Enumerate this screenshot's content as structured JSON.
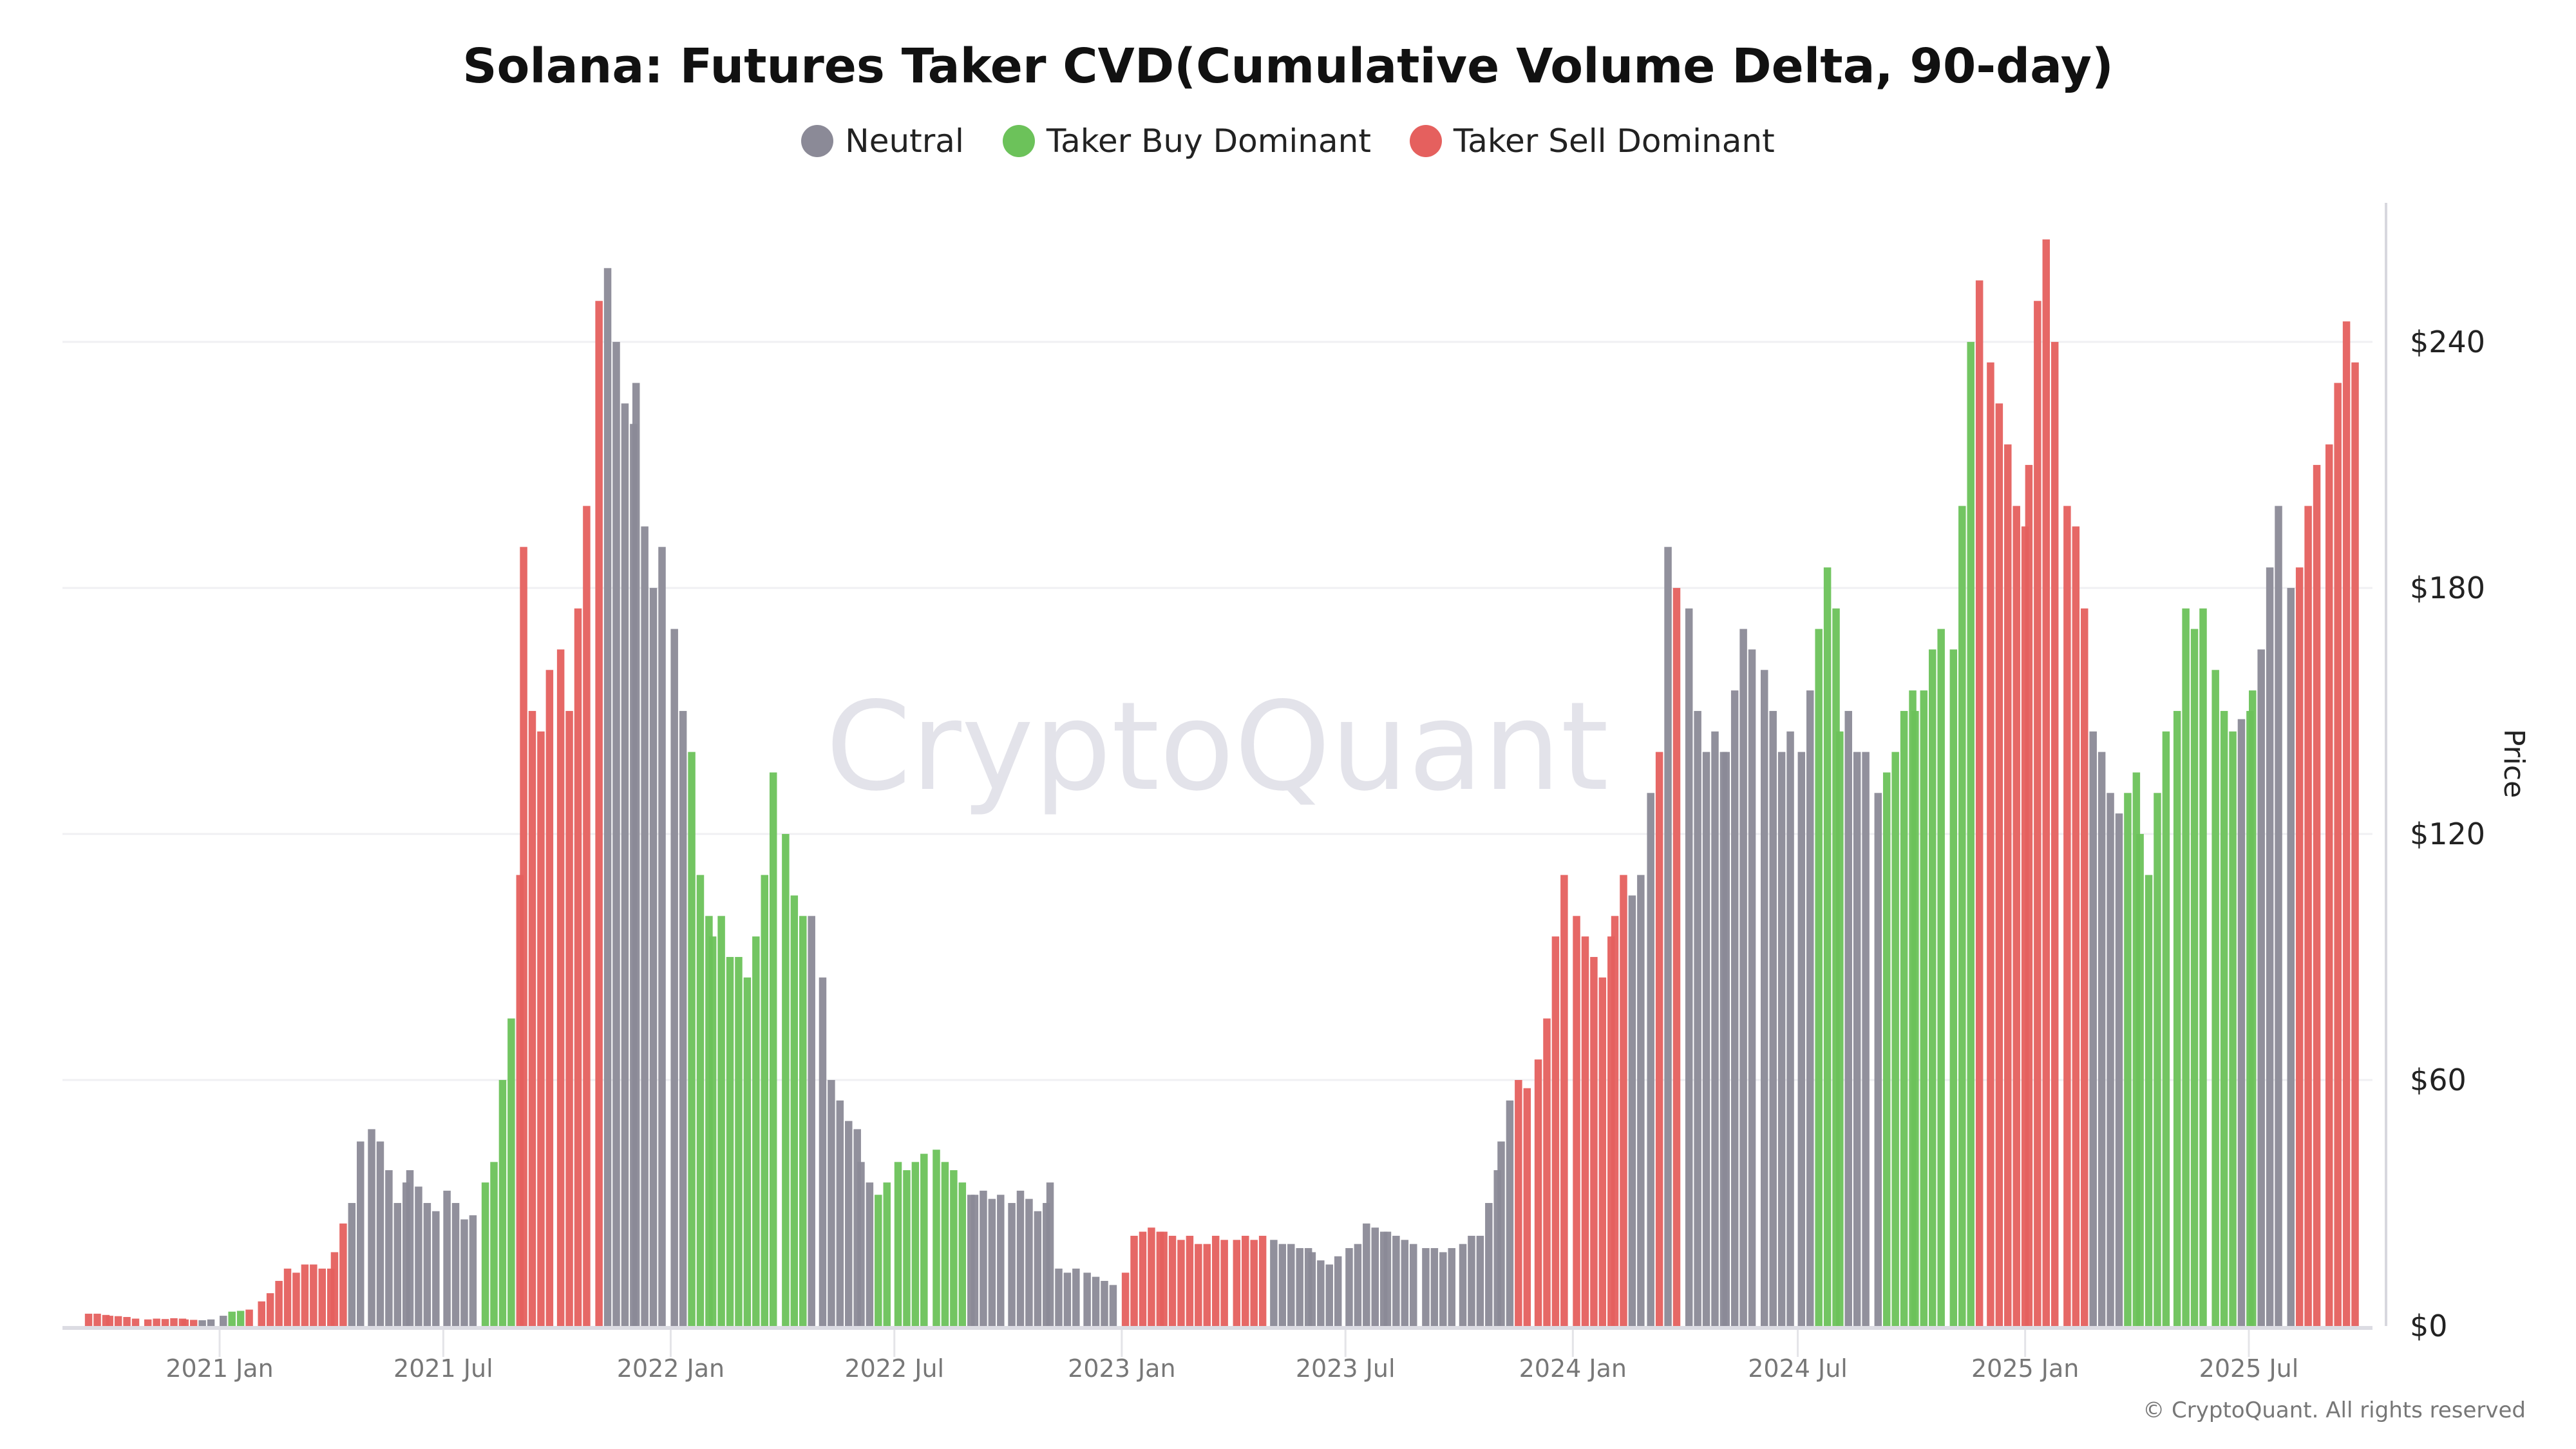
{
  "chart_data": {
    "type": "bar",
    "title": "Solana: Futures Taker CVD(Cumulative Volume Delta, 90-day)",
    "ylabel": "Price",
    "xlabel": "",
    "ylim": [
      0,
      274
    ],
    "y_ticks": [
      "$0",
      "$60",
      "$120",
      "$180",
      "$240"
    ],
    "y_tick_values": [
      0,
      60,
      120,
      180,
      240
    ],
    "x_ticks": [
      {
        "date": "2021-01-01",
        "label": "2021 Jan"
      },
      {
        "date": "2021-07-01",
        "label": "2021 Jul"
      },
      {
        "date": "2022-01-01",
        "label": "2022 Jan"
      },
      {
        "date": "2022-07-01",
        "label": "2022 Jul"
      },
      {
        "date": "2023-01-01",
        "label": "2023 Jan"
      },
      {
        "date": "2023-07-01",
        "label": "2023 Jul"
      },
      {
        "date": "2024-01-01",
        "label": "2024 Jan"
      },
      {
        "date": "2024-07-01",
        "label": "2024 Jul"
      },
      {
        "date": "2025-01-01",
        "label": "2025 Jan"
      },
      {
        "date": "2025-07-01",
        "label": "2025 Jul"
      }
    ],
    "grid": "horizontal",
    "legend_position": "top",
    "series": [
      {
        "name": "Neutral",
        "key": "neutral",
        "color": "#8b8a97"
      },
      {
        "name": "Taker Buy Dominant",
        "key": "buy",
        "color": "#6cc25a"
      },
      {
        "name": "Taker Sell Dominant",
        "key": "sell",
        "color": "#e5605e"
      }
    ],
    "weekly_price_by_month": {
      "2020-09": [
        3.0,
        3.0,
        2.7
      ],
      "2020-10": [
        2.5,
        2.4,
        2.2,
        1.8
      ],
      "2020-11": [
        1.6,
        1.8,
        1.7,
        1.9,
        1.8
      ],
      "2020-12": [
        1.6,
        1.5,
        1.4,
        1.6
      ],
      "2021-01": [
        2.5,
        3.5,
        3.7,
        4.0
      ],
      "2021-02": [
        6,
        8,
        11,
        14
      ],
      "2021-03": [
        13,
        15,
        15,
        14,
        14
      ],
      "2021-04": [
        18,
        25,
        30,
        45
      ],
      "2021-05": [
        48,
        45,
        38,
        30,
        35
      ],
      "2021-06": [
        38,
        34,
        30,
        28
      ],
      "2021-07": [
        33,
        30,
        26,
        27
      ],
      "2021-08": [
        35,
        40,
        60,
        75,
        110
      ],
      "2021-09": [
        190,
        150,
        145,
        160
      ],
      "2021-10": [
        165,
        150,
        175,
        200
      ],
      "2021-11": [
        250,
        258,
        240,
        225,
        220
      ],
      "2021-12": [
        230,
        195,
        180,
        190
      ],
      "2022-01": [
        170,
        150,
        140,
        110,
        100
      ],
      "2022-02": [
        95,
        100,
        90,
        90
      ],
      "2022-03": [
        85,
        95,
        110,
        135
      ],
      "2022-04": [
        120,
        105,
        100,
        100
      ],
      "2022-05": [
        85,
        60,
        55,
        50,
        48
      ],
      "2022-06": [
        40,
        35,
        32,
        35
      ],
      "2022-07": [
        40,
        38,
        40,
        42
      ],
      "2022-08": [
        43,
        40,
        38,
        35,
        32
      ],
      "2022-09": [
        32,
        33,
        31,
        32
      ],
      "2022-10": [
        30,
        33,
        31,
        28,
        30
      ],
      "2022-11": [
        35,
        14,
        13,
        14
      ],
      "2022-12": [
        13,
        12,
        11,
        10
      ],
      "2023-01": [
        13,
        22,
        23,
        24,
        23
      ],
      "2023-02": [
        23,
        22,
        21,
        22
      ],
      "2023-03": [
        20,
        20,
        22,
        21
      ],
      "2023-04": [
        21,
        22,
        21,
        22
      ],
      "2023-05": [
        21,
        20,
        20,
        19,
        19
      ],
      "2023-06": [
        18,
        16,
        15,
        17
      ],
      "2023-07": [
        19,
        20,
        25,
        24,
        23
      ],
      "2023-08": [
        23,
        22,
        21,
        20
      ],
      "2023-09": [
        19,
        19,
        18,
        19
      ],
      "2023-10": [
        20,
        22,
        22,
        30,
        38
      ],
      "2023-11": [
        45,
        55,
        60,
        58
      ],
      "2023-12": [
        65,
        75,
        95,
        110
      ],
      "2024-01": [
        100,
        95,
        90,
        85,
        95
      ],
      "2024-02": [
        100,
        110,
        105,
        110
      ],
      "2024-03": [
        130,
        140,
        190,
        180
      ],
      "2024-04": [
        175,
        150,
        140,
        145,
        140
      ],
      "2024-05": [
        140,
        155,
        170,
        165
      ],
      "2024-06": [
        160,
        150,
        140,
        145
      ],
      "2024-07": [
        140,
        155,
        170,
        185,
        175
      ],
      "2024-08": [
        145,
        150,
        140,
        140
      ],
      "2024-09": [
        130,
        135,
        140,
        150,
        155
      ],
      "2024-10": [
        150,
        155,
        165,
        170
      ],
      "2024-11": [
        165,
        200,
        240,
        255
      ],
      "2024-12": [
        235,
        225,
        215,
        200,
        195
      ],
      "2025-01": [
        210,
        250,
        265,
        240
      ],
      "2025-02": [
        200,
        195,
        175,
        145
      ],
      "2025-03": [
        140,
        130,
        125,
        130,
        135
      ],
      "2025-04": [
        120,
        110,
        130,
        145
      ],
      "2025-05": [
        150,
        175,
        170,
        175
      ],
      "2025-06": [
        160,
        150,
        145,
        148,
        150
      ],
      "2025-07": [
        155,
        165,
        185,
        200
      ],
      "2025-08": [
        180,
        185,
        200,
        210
      ],
      "2025-09": [
        215,
        230,
        245,
        235
      ]
    },
    "regimes": [
      {
        "start": "2020-09-14",
        "end": "2020-12-12",
        "regime": "sell"
      },
      {
        "start": "2020-12-12",
        "end": "2021-01-06",
        "regime": "neutral"
      },
      {
        "start": "2021-01-06",
        "end": "2021-01-17",
        "regime": "buy"
      },
      {
        "start": "2021-01-17",
        "end": "2021-04-10",
        "regime": "sell"
      },
      {
        "start": "2021-04-10",
        "end": "2021-08-01",
        "regime": "neutral"
      },
      {
        "start": "2021-08-01",
        "end": "2021-08-27",
        "regime": "buy"
      },
      {
        "start": "2021-08-27",
        "end": "2021-11-04",
        "regime": "sell"
      },
      {
        "start": "2021-11-04",
        "end": "2022-01-13",
        "regime": "neutral"
      },
      {
        "start": "2022-01-13",
        "end": "2022-04-19",
        "regime": "buy"
      },
      {
        "start": "2022-04-19",
        "end": "2022-06-15",
        "regime": "neutral"
      },
      {
        "start": "2022-06-15",
        "end": "2022-08-24",
        "regime": "buy"
      },
      {
        "start": "2022-08-24",
        "end": "2022-12-29",
        "regime": "neutral"
      },
      {
        "start": "2022-12-29",
        "end": "2023-04-28",
        "regime": "sell"
      },
      {
        "start": "2023-04-28",
        "end": "2023-11-13",
        "regime": "neutral"
      },
      {
        "start": "2023-11-13",
        "end": "2024-02-15",
        "regime": "sell"
      },
      {
        "start": "2024-02-15",
        "end": "2024-03-04",
        "regime": "neutral"
      },
      {
        "start": "2024-03-04",
        "end": "2024-03-09",
        "regime": "sell"
      },
      {
        "start": "2024-03-09",
        "end": "2024-03-20",
        "regime": "neutral"
      },
      {
        "start": "2024-03-20",
        "end": "2024-03-25",
        "regime": "sell"
      },
      {
        "start": "2024-03-25",
        "end": "2024-07-13",
        "regime": "neutral"
      },
      {
        "start": "2024-07-13",
        "end": "2024-08-02",
        "regime": "buy"
      },
      {
        "start": "2024-08-02",
        "end": "2024-09-03",
        "regime": "neutral"
      },
      {
        "start": "2024-09-03",
        "end": "2024-11-22",
        "regime": "buy"
      },
      {
        "start": "2024-11-22",
        "end": "2025-02-19",
        "regime": "sell"
      },
      {
        "start": "2025-02-19",
        "end": "2025-03-17",
        "regime": "neutral"
      },
      {
        "start": "2025-03-17",
        "end": "2025-06-17",
        "regime": "buy"
      },
      {
        "start": "2025-06-17",
        "end": "2025-06-23",
        "regime": "neutral"
      },
      {
        "start": "2025-06-23",
        "end": "2025-07-03",
        "regime": "buy"
      },
      {
        "start": "2025-07-03",
        "end": "2025-08-06",
        "regime": "neutral"
      },
      {
        "start": "2025-08-06",
        "end": "2025-09-30",
        "regime": "sell"
      }
    ]
  },
  "watermark": "CryptoQuant",
  "copyright": "© CryptoQuant. All rights reserved"
}
